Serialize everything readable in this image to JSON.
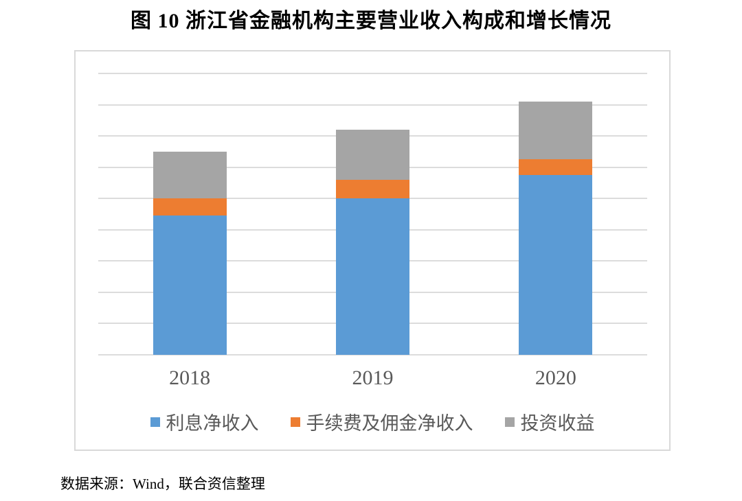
{
  "page": {
    "title": "图 10 浙江省金融机构主要营业收入构成和增长情况",
    "source": "数据来源：Wind，联合资信整理"
  },
  "chart_data": {
    "type": "bar",
    "stacked": true,
    "title": "图 10 浙江省金融机构主要营业收入构成和增长情况",
    "categories": [
      "2018",
      "2019",
      "2020"
    ],
    "series": [
      {
        "name": "利息净收入",
        "color": "#5B9BD5",
        "values": [
          4.45,
          5.0,
          5.75
        ]
      },
      {
        "name": "手续费及佣金净收入",
        "color": "#ED7D31",
        "values": [
          0.55,
          0.6,
          0.5
        ]
      },
      {
        "name": "投资收益",
        "color": "#A5A5A5",
        "values": [
          1.5,
          1.6,
          1.85
        ]
      }
    ],
    "totals": [
      6.5,
      7.2,
      8.1
    ],
    "y_axis": {
      "tick_labels_visible": false,
      "unit": "gridline units (axis unlabeled in figure)",
      "ylim": [
        0,
        9.75
      ],
      "gridline_interval": 1,
      "gridline_count_above_baseline": 9
    },
    "legend_position": "bottom",
    "grid_on": true,
    "colors": {
      "gridline": "#DCDCDC",
      "plot_border": "#D9D9D9",
      "axis_label_text": "#595959",
      "title_text": "#000000"
    }
  }
}
